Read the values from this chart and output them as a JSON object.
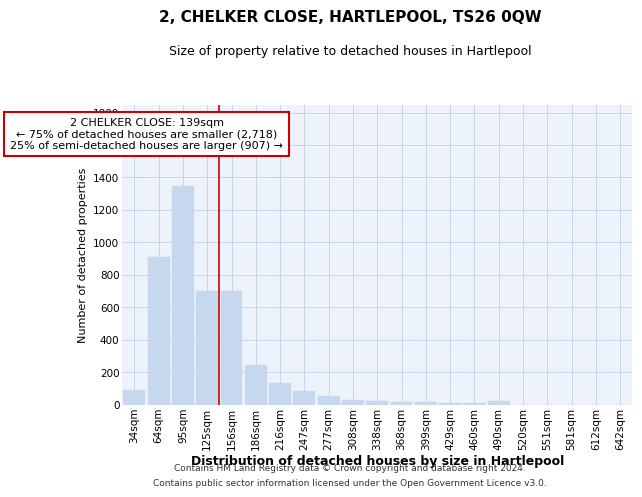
{
  "title": "2, CHELKER CLOSE, HARTLEPOOL, TS26 0QW",
  "subtitle": "Size of property relative to detached houses in Hartlepool",
  "xlabel": "Distribution of detached houses by size in Hartlepool",
  "ylabel": "Number of detached properties",
  "footer1": "Contains HM Land Registry data © Crown copyright and database right 2024.",
  "footer2": "Contains public sector information licensed under the Open Government Licence v3.0.",
  "categories": [
    "34sqm",
    "64sqm",
    "95sqm",
    "125sqm",
    "156sqm",
    "186sqm",
    "216sqm",
    "247sqm",
    "277sqm",
    "308sqm",
    "338sqm",
    "368sqm",
    "399sqm",
    "429sqm",
    "460sqm",
    "490sqm",
    "520sqm",
    "551sqm",
    "581sqm",
    "612sqm",
    "642sqm"
  ],
  "values": [
    90,
    910,
    1350,
    700,
    700,
    245,
    135,
    85,
    55,
    28,
    22,
    18,
    15,
    12,
    10,
    20,
    0,
    0,
    0,
    0,
    0
  ],
  "bar_color": "#c5d8ed",
  "bar_edge_color": "#c5d8ed",
  "grid_color": "#c8d4e8",
  "background_color": "#eef2fb",
  "ann_line1": "2 CHELKER CLOSE: 139sqm",
  "ann_line2": "← 75% of detached houses are smaller (2,718)",
  "ann_line3": "25% of semi-detached houses are larger (907) →",
  "vline_color": "#cc0000",
  "vline_x": 3.5,
  "ylim": [
    0,
    1850
  ],
  "yticks": [
    0,
    200,
    400,
    600,
    800,
    1000,
    1200,
    1400,
    1600,
    1800
  ],
  "title_fontsize": 11,
  "subtitle_fontsize": 9,
  "xlabel_fontsize": 9,
  "ylabel_fontsize": 8,
  "tick_fontsize": 7.5,
  "ann_fontsize": 8,
  "footer_fontsize": 6.5
}
